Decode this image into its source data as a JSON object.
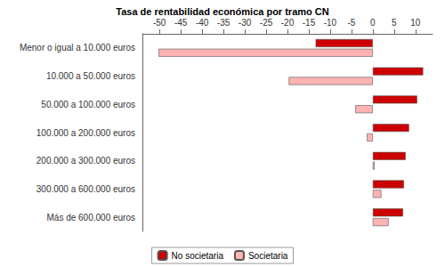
{
  "chart_data": {
    "type": "bar",
    "orientation": "horizontal",
    "title": "Tasa de rentabilidad económica por tramo CN",
    "categories": [
      "Menor o igual a 10.000 euros",
      "10.000 a 50.000 euros",
      "50.000 a 100.000 euros",
      "100.000 a 200.000 euros",
      "200.000 a 300.000 euros",
      "300.000 a 600.000 euros",
      "Más de 600.000 euros"
    ],
    "series": [
      {
        "name": "No societaria",
        "color": "#cc0000",
        "values": [
          -13.4,
          11.8,
          10.4,
          8.5,
          7.7,
          7.3,
          7.1
        ]
      },
      {
        "name": "Societaria",
        "color": "#ffb3b3",
        "values": [
          -50.2,
          -19.7,
          -4.1,
          -1.4,
          0.4,
          2.0,
          3.7
        ]
      }
    ],
    "xlim": [
      -54,
      14
    ],
    "xticks": [
      -50,
      -45,
      -40,
      -35,
      -30,
      -25,
      -20,
      -15,
      -10,
      -5,
      0,
      5,
      10
    ],
    "grid": false,
    "legend": "bottom"
  }
}
